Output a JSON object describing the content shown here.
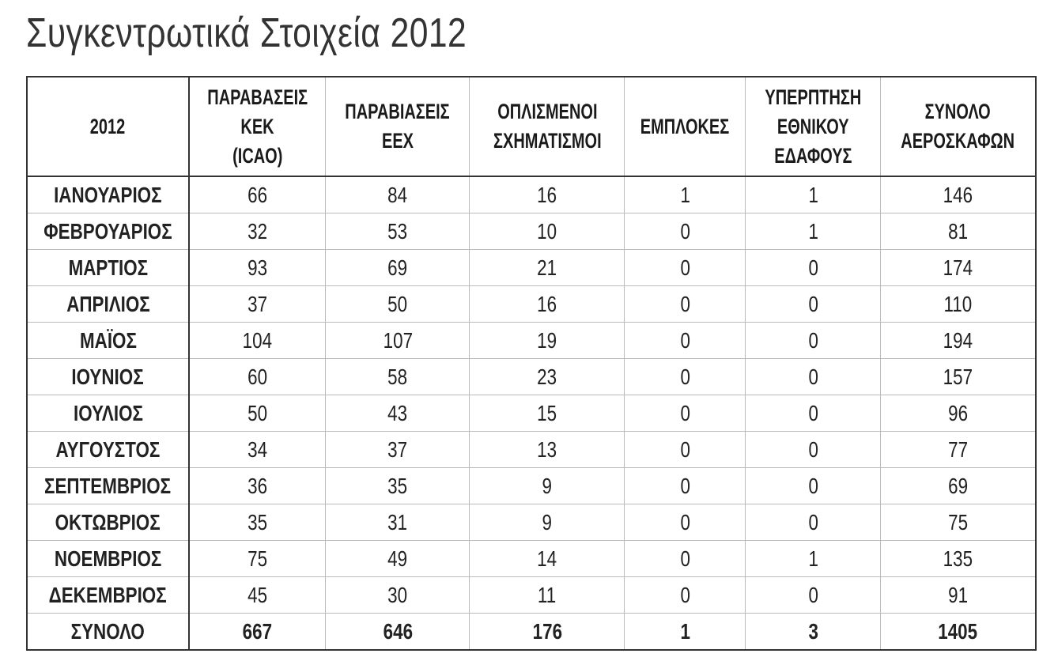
{
  "title": "Συγκεντρωτικά Στοιχεία 2012",
  "table": {
    "headers": [
      [
        "2012"
      ],
      [
        "ΠΑΡΑΒΑΣΕΙΣ",
        "ΚΕΚ",
        "(ICAO)"
      ],
      [
        "ΠΑΡΑΒΙΑΣΕΙΣ",
        "ΕΕΧ"
      ],
      [
        "ΟΠΛΙΣΜΕΝΟΙ",
        "ΣΧΗΜΑΤΙΣΜΟΙ"
      ],
      [
        "ΕΜΠΛΟΚΕΣ"
      ],
      [
        "ΥΠΕΡΠΤΗΣΗ",
        "ΕΘΝΙΚΟΥ",
        "ΕΔΑΦΟΥΣ"
      ],
      [
        "ΣΥΝΟΛΟ",
        "ΑΕΡΟΣΚΑΦΩΝ"
      ]
    ],
    "rows": [
      [
        "ΙΑΝΟΥΑΡΙΟΣ",
        "66",
        "84",
        "16",
        "1",
        "1",
        "146"
      ],
      [
        "ΦΕΒΡΟΥΑΡΙΟΣ",
        "32",
        "53",
        "10",
        "0",
        "1",
        "81"
      ],
      [
        "ΜΑΡΤΙΟΣ",
        "93",
        "69",
        "21",
        "0",
        "0",
        "174"
      ],
      [
        "ΑΠΡΙΛΙΟΣ",
        "37",
        "50",
        "16",
        "0",
        "0",
        "110"
      ],
      [
        "ΜΑΪΟΣ",
        "104",
        "107",
        "19",
        "0",
        "0",
        "194"
      ],
      [
        "ΙΟΥΝΙΟΣ",
        "60",
        "58",
        "23",
        "0",
        "0",
        "157"
      ],
      [
        "ΙΟΥΛΙΟΣ",
        "50",
        "43",
        "15",
        "0",
        "0",
        "96"
      ],
      [
        "ΑΥΓΟΥΣΤΟΣ",
        "34",
        "37",
        "13",
        "0",
        "0",
        "77"
      ],
      [
        "ΣΕΠΤΕΜΒΡΙΟΣ",
        "36",
        "35",
        "9",
        "0",
        "0",
        "69"
      ],
      [
        "ΟΚΤΩΒΡΙΟΣ",
        "35",
        "31",
        "9",
        "0",
        "0",
        "75"
      ],
      [
        "ΝΟΕΜΒΡΙΟΣ",
        "75",
        "49",
        "14",
        "0",
        "1",
        "135"
      ],
      [
        "ΔΕΚΕΜΒΡΙΟΣ",
        "45",
        "30",
        "11",
        "0",
        "0",
        "91"
      ]
    ],
    "total": [
      "ΣΥΝΟΛΟ",
      "667",
      "646",
      "176",
      "1",
      "3",
      "1405"
    ]
  }
}
